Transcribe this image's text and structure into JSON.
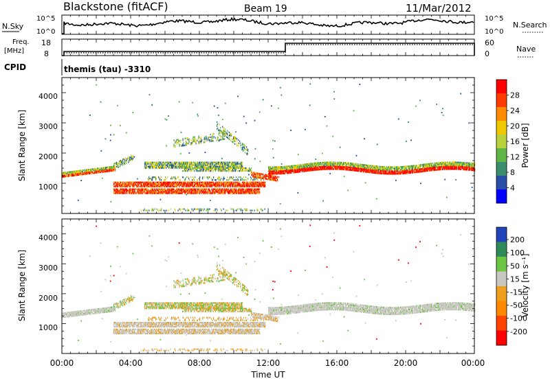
{
  "header": {
    "station": "Blackstone (fitACF)",
    "beam": "Beam 19",
    "date": "11/Mar/2012"
  },
  "chart_data": [
    {
      "type": "line",
      "name": "noise-panel",
      "left_label": "N.Sky",
      "right_label": "N.Search",
      "left_ticks": [
        "10^5",
        "10^0"
      ],
      "right_ticks": [
        "10^5",
        "10^0"
      ]
    },
    {
      "type": "line",
      "name": "frequency-panel",
      "left_label_line1": "Freq.",
      "left_label_line2": "[MHz]",
      "left_ticks": [
        "18",
        "8"
      ],
      "right_label": "Nave",
      "right_ticks": [
        "60",
        "0"
      ],
      "step_time_hours": 13.0
    },
    {
      "type": "text",
      "name": "cpid-panel",
      "label": "CPID",
      "text": "themis (tau) -3310"
    },
    {
      "type": "heatmap",
      "name": "power-panel",
      "ylabel": "Slant Range [km]",
      "ylim": [
        0,
        4500
      ],
      "yticks": [
        "1000",
        "2000",
        "3000",
        "4000"
      ],
      "colorbar_label": "Power [dB]",
      "colorbar_range": [
        0,
        32
      ],
      "colorbar_ticks": [
        "4",
        "8",
        "12",
        "16",
        "20",
        "24",
        "28"
      ],
      "colors": [
        "#0000ff",
        "#2a4fa8",
        "#3c8c6e",
        "#5fb646",
        "#b7d23c",
        "#f0c800",
        "#ff8c00",
        "#ff3c00",
        "#ff0000"
      ]
    },
    {
      "type": "heatmap",
      "name": "velocity-panel",
      "ylabel": "Slant Range [km]",
      "ylim": [
        0,
        4500
      ],
      "yticks": [
        "1000",
        "2000",
        "3000",
        "4000"
      ],
      "colorbar_label": "Velocity [m s⁻¹]",
      "colorbar_ticks": [
        "200",
        "100",
        "50",
        "15",
        "-15",
        "-50",
        "-100",
        "-200"
      ],
      "colors": [
        "#2244bb",
        "#2e8b57",
        "#6cc644",
        "#c8c8c0",
        "#f0a020",
        "#ff8800",
        "#ff4400",
        "#ff0000"
      ]
    }
  ],
  "time_axis": {
    "xlabel": "Time UT",
    "range_hours": [
      0,
      24
    ],
    "tick_labels": [
      "00:00",
      "04:00",
      "08:00",
      "12:00",
      "16:00",
      "20:00",
      "00:00"
    ]
  }
}
